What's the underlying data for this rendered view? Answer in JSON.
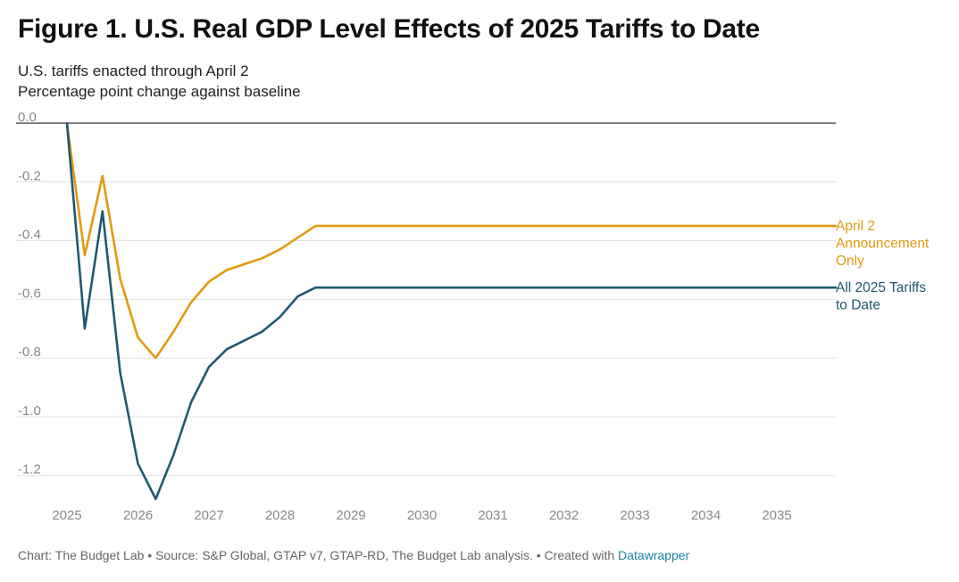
{
  "header": {
    "title": "Figure 1. U.S. Real GDP Level Effects of 2025 Tariffs to Date",
    "subtitle_line1": "U.S. tariffs enacted through April 2",
    "subtitle_line2": "Percentage point change against baseline"
  },
  "footer": {
    "text": "Chart: The Budget Lab • Source: S&P Global, GTAP v7, GTAP-RD, The Budget Lab analysis. • Created with",
    "link": "Datawrapper"
  },
  "chart_data": {
    "type": "line",
    "title": "Figure 1. U.S. Real GDP Level Effects of 2025 Tariffs to Date",
    "subtitle": "U.S. tariffs enacted through April 2",
    "ylabel": "Percentage point change against baseline",
    "xlabel": "",
    "xlim": [
      2025,
      2035.83
    ],
    "ylim": [
      -1.28,
      0.0
    ],
    "x_ticks": [
      "2025",
      "2026",
      "2027",
      "2028",
      "2029",
      "2030",
      "2031",
      "2032",
      "2033",
      "2034",
      "2035"
    ],
    "y_ticks": [
      "0.0",
      "-0.2",
      "-0.4",
      "-0.6",
      "-0.8",
      "-1.0",
      "-1.2"
    ],
    "y_tick_values": [
      0.0,
      -0.2,
      -0.4,
      -0.6,
      -0.8,
      -1.0,
      -1.2
    ],
    "grid": true,
    "legend": "direct labels at right end of lines",
    "series": [
      {
        "name": "April 2 Announcement Only",
        "label_lines": [
          "April 2",
          "Announcement",
          "Only"
        ],
        "color": "#e29a10",
        "x": [
          2025.0,
          2025.25,
          2025.5,
          2025.75,
          2026.0,
          2026.25,
          2026.5,
          2026.75,
          2027.0,
          2027.25,
          2027.5,
          2027.75,
          2028.0,
          2028.25,
          2028.5,
          2029,
          2030,
          2031,
          2032,
          2033,
          2034,
          2035,
          2035.83
        ],
        "values": [
          0.0,
          -0.45,
          -0.18,
          -0.53,
          -0.73,
          -0.8,
          -0.71,
          -0.61,
          -0.54,
          -0.5,
          -0.48,
          -0.46,
          -0.43,
          -0.39,
          -0.35,
          -0.35,
          -0.35,
          -0.35,
          -0.35,
          -0.35,
          -0.35,
          -0.35,
          -0.35
        ]
      },
      {
        "name": "All 2025 Tariffs to Date",
        "label_lines": [
          "All 2025 Tariffs",
          "to Date"
        ],
        "color": "#1f5a72",
        "x": [
          2025.0,
          2025.25,
          2025.5,
          2025.75,
          2026.0,
          2026.25,
          2026.5,
          2026.75,
          2027.0,
          2027.25,
          2027.5,
          2027.75,
          2028.0,
          2028.25,
          2028.5,
          2029,
          2030,
          2031,
          2032,
          2033,
          2034,
          2035,
          2035.83
        ],
        "values": [
          0.0,
          -0.7,
          -0.3,
          -0.85,
          -1.16,
          -1.28,
          -1.13,
          -0.95,
          -0.83,
          -0.77,
          -0.74,
          -0.71,
          -0.66,
          -0.59,
          -0.56,
          -0.56,
          -0.56,
          -0.56,
          -0.56,
          -0.56,
          -0.56,
          -0.56,
          -0.56
        ]
      }
    ]
  }
}
